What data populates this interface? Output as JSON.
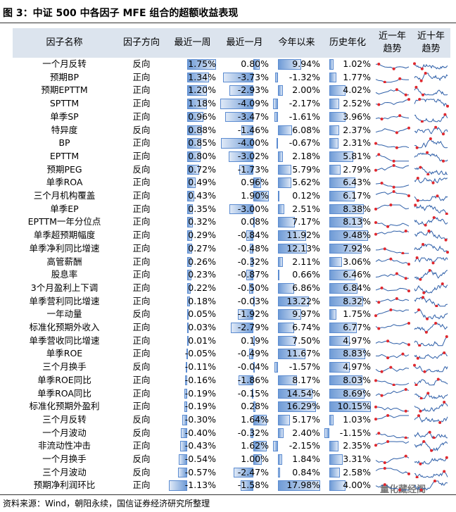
{
  "title": "图 3：中证 500 中各因子 MFE 组合的超额收益表现",
  "table": {
    "header": [
      "因子名称",
      "因子方向",
      "最近一周",
      "最近一月",
      "今年以来",
      "历史年化",
      [
        "近一年",
        "趋势"
      ],
      [
        "近十年",
        "趋势"
      ]
    ],
    "rows": [
      [
        "一个月反转",
        "反向",
        "1.75%",
        "0.80%",
        "9.94%",
        "1.02%"
      ],
      [
        "预期BP",
        "正向",
        "1.34%",
        "-3.73%",
        "-1.32%",
        "1.77%"
      ],
      [
        "预期EPTTM",
        "正向",
        "1.20%",
        "-2.93%",
        "2.00%",
        "4.02%"
      ],
      [
        "SPTTM",
        "正向",
        "1.18%",
        "-4.09%",
        "-2.17%",
        "2.52%"
      ],
      [
        "单季SP",
        "正向",
        "0.96%",
        "-3.47%",
        "-1.61%",
        "3.96%"
      ],
      [
        "特异度",
        "反向",
        "0.88%",
        "-1.46%",
        "6.08%",
        "2.37%"
      ],
      [
        "BP",
        "正向",
        "0.85%",
        "-4.00%",
        "-0.67%",
        "2.31%"
      ],
      [
        "EPTTM",
        "正向",
        "0.80%",
        "-3.02%",
        "2.18%",
        "5.81%"
      ],
      [
        "预期PEG",
        "反向",
        "0.72%",
        "-1.73%",
        "5.79%",
        "2.79%"
      ],
      [
        "单季ROA",
        "正向",
        "0.49%",
        "0.96%",
        "5.62%",
        "6.43%"
      ],
      [
        "三个月机构覆盖",
        "正向",
        "0.43%",
        "1.90%",
        "0.12%",
        "6.17%"
      ],
      [
        "单季EP",
        "正向",
        "0.35%",
        "-3.00%",
        "2.51%",
        "8.38%"
      ],
      [
        "EPTTM一年分位点",
        "正向",
        "0.32%",
        "0.08%",
        "7.17%",
        "8.13%"
      ],
      [
        "单季超预期幅度",
        "正向",
        "0.29%",
        "-0.84%",
        "11.92%",
        "9.48%"
      ],
      [
        "单季净利同比增速",
        "正向",
        "0.27%",
        "-0.48%",
        "12.13%",
        "7.92%"
      ],
      [
        "高管薪酬",
        "正向",
        "0.26%",
        "-0.32%",
        "2.11%",
        "3.06%"
      ],
      [
        "股息率",
        "正向",
        "0.23%",
        "-0.87%",
        "0.66%",
        "6.46%"
      ],
      [
        "3个月盈利上下调",
        "正向",
        "0.22%",
        "-0.50%",
        "6.86%",
        "6.84%"
      ],
      [
        "单季营利同比增速",
        "正向",
        "0.18%",
        "-0.03%",
        "13.22%",
        "8.32%"
      ],
      [
        "一年动量",
        "反向",
        "0.05%",
        "-1.92%",
        "9.97%",
        "1.75%"
      ],
      [
        "标准化预期外收入",
        "正向",
        "0.03%",
        "-2.79%",
        "6.74%",
        "6.77%"
      ],
      [
        "单季营收同比增速",
        "正向",
        "0.01%",
        "0.19%",
        "7.50%",
        "4.97%"
      ],
      [
        "单季ROE",
        "正向",
        "-0.05%",
        "-0.49%",
        "11.67%",
        "8.83%"
      ],
      [
        "三个月换手",
        "反向",
        "-0.11%",
        "-0.04%",
        "-1.57%",
        "4.97%"
      ],
      [
        "单季ROE同比",
        "正向",
        "-0.16%",
        "-1.86%",
        "8.17%",
        "8.03%"
      ],
      [
        "单季ROA同比",
        "正向",
        "-0.19%",
        "-0.15%",
        "14.54%",
        "8.69%"
      ],
      [
        "标准化预期外盈利",
        "正向",
        "-0.19%",
        "0.28%",
        "16.29%",
        "10.15%"
      ],
      [
        "三个月反转",
        "反向",
        "-0.30%",
        "1.64%",
        "5.17%",
        "1.03%"
      ],
      [
        "一个月波动",
        "反向",
        "-0.40%",
        "-0.32%",
        "2.40%",
        "-1.15%"
      ],
      [
        "非流动性冲击",
        "正向",
        "-0.43%",
        "1.62%",
        "-2.15%",
        "2.35%"
      ],
      [
        "一个月换手",
        "反向",
        "-0.54%",
        "1.00%",
        "1.84%",
        "3.31%"
      ],
      [
        "三个月波动",
        "反向",
        "-0.57%",
        "-2.47%",
        "0.84%",
        "2.58%"
      ],
      [
        "预期净利润环比",
        "正向",
        "-1.13%",
        "-1.58%",
        "17.98%",
        "4.00%"
      ]
    ]
  },
  "watermark": "量化藏经阁",
  "source": "资料来源：Wind，朝阳永续，国信证券经济研究所整理"
}
